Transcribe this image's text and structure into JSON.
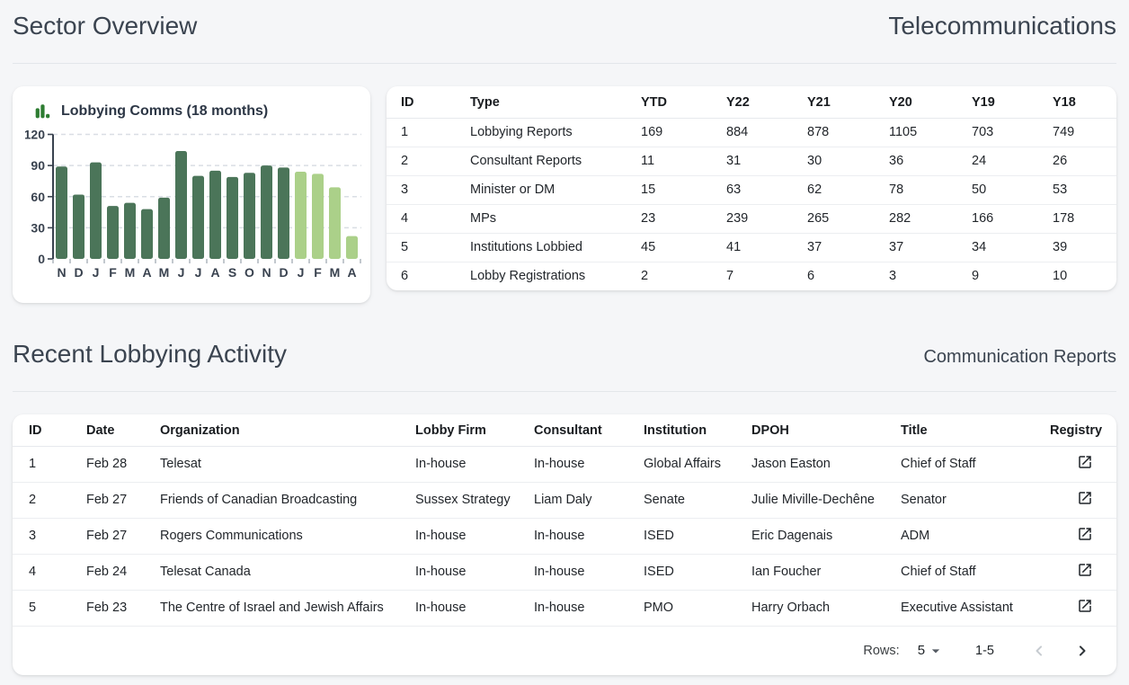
{
  "header": {
    "title": "Sector Overview",
    "sector": "Telecommunications"
  },
  "chart_data": {
    "type": "bar",
    "title": "Lobbying Comms (18 months)",
    "categories": [
      "N",
      "D",
      "J",
      "F",
      "M",
      "A",
      "M",
      "J",
      "J",
      "A",
      "S",
      "O",
      "N",
      "D",
      "J",
      "F",
      "M",
      "A"
    ],
    "values": [
      89,
      62,
      93,
      51,
      54,
      48,
      59,
      104,
      80,
      85,
      79,
      83,
      90,
      88,
      84,
      82,
      69,
      22
    ],
    "recent_count": 4,
    "ylim": [
      0,
      120
    ],
    "yticks": [
      0,
      30,
      60,
      90,
      120
    ],
    "grid": true,
    "legend": "none",
    "xlabel": "",
    "ylabel": ""
  },
  "colors": {
    "bar_primary": "#4b7559",
    "bar_recent": "#abd089",
    "icon_green": "#2e7d32",
    "axis": "#39424f",
    "grid_line": "#d9dee4",
    "x_tick": "#9aa3ad",
    "heading": "#3b4450"
  },
  "stats_table": {
    "columns": [
      "ID",
      "Type",
      "YTD",
      "Y22",
      "Y21",
      "Y20",
      "Y19",
      "Y18"
    ],
    "rows": [
      [
        "1",
        "Lobbying Reports",
        "169",
        "884",
        "878",
        "1105",
        "703",
        "749"
      ],
      [
        "2",
        "Consultant Reports",
        "11",
        "31",
        "30",
        "36",
        "24",
        "26"
      ],
      [
        "3",
        "Minister or DM",
        "15",
        "63",
        "62",
        "78",
        "50",
        "53"
      ],
      [
        "4",
        "MPs",
        "23",
        "239",
        "265",
        "282",
        "166",
        "178"
      ],
      [
        "5",
        "Institutions Lobbied",
        "45",
        "41",
        "37",
        "37",
        "34",
        "39"
      ],
      [
        "6",
        "Lobby Registrations",
        "2",
        "7",
        "6",
        "3",
        "9",
        "10"
      ]
    ]
  },
  "activity": {
    "title": "Recent Lobbying Activity",
    "subtitle": "Communication Reports",
    "table": {
      "columns": [
        "ID",
        "Date",
        "Organization",
        "Lobby Firm",
        "Consultant",
        "Institution",
        "DPOH",
        "Title",
        "Registry"
      ],
      "rows": [
        {
          "id": "1",
          "date": "Feb 28",
          "organization": "Telesat",
          "lobby_firm": "In-house",
          "consultant": "In-house",
          "institution": "Global Affairs",
          "dpoh": "Jason Easton",
          "title": "Chief of Staff"
        },
        {
          "id": "2",
          "date": "Feb 27",
          "organization": "Friends of Canadian Broadcasting",
          "lobby_firm": "Sussex Strategy",
          "consultant": "Liam Daly",
          "institution": "Senate",
          "dpoh": "Julie Miville-Dechêne",
          "title": "Senator"
        },
        {
          "id": "3",
          "date": "Feb 27",
          "organization": "Rogers Communications",
          "lobby_firm": "In-house",
          "consultant": "In-house",
          "institution": "ISED",
          "dpoh": "Eric Dagenais",
          "title": "ADM"
        },
        {
          "id": "4",
          "date": "Feb 24",
          "organization": "Telesat Canada",
          "lobby_firm": "In-house",
          "consultant": "In-house",
          "institution": "ISED",
          "dpoh": "Ian Foucher",
          "title": "Chief of Staff"
        },
        {
          "id": "5",
          "date": "Feb 23",
          "organization": "The Centre of Israel and Jewish Affairs",
          "lobby_firm": "In-house",
          "consultant": "In-house",
          "institution": "PMO",
          "dpoh": "Harry Orbach",
          "title": "Executive Assistant"
        }
      ]
    },
    "pagination": {
      "rows_label": "Rows:",
      "rows_value": "5",
      "range": "1-5"
    }
  },
  "icons": {
    "chart_title": "bar-chart-icon",
    "registry": "open-in-new-icon",
    "rows_dropdown": "arrow-drop-down-icon",
    "page_prev": "chevron-left-icon",
    "page_next": "chevron-right-icon"
  }
}
